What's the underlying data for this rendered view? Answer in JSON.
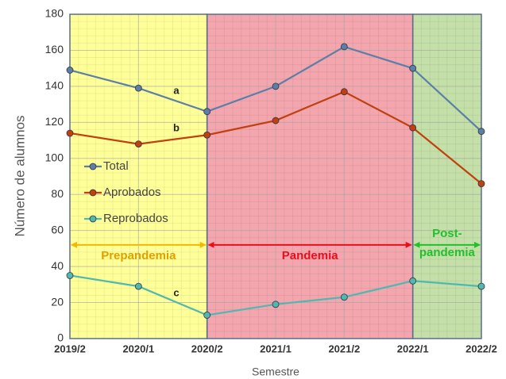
{
  "chart_data": {
    "type": "line",
    "xlabel": "Semestre",
    "ylabel": "Número de alumnos",
    "categories": [
      "2019/2",
      "2020/1",
      "2020/2",
      "2021/1",
      "2021/2",
      "2022/1",
      "2022/2"
    ],
    "series": [
      {
        "name": "Total",
        "color": "#5b7fa6",
        "values": [
          149,
          139,
          126,
          140,
          162,
          150,
          115
        ]
      },
      {
        "name": "Aprobados",
        "color": "#c0400f",
        "values": [
          114,
          108,
          113,
          121,
          137,
          117,
          86
        ]
      },
      {
        "name": "Reprobados",
        "color": "#4fb8b0",
        "values": [
          35,
          29,
          13,
          19,
          23,
          32,
          29
        ]
      }
    ],
    "regions": [
      {
        "label": "Prepandemia",
        "start": "2019/2",
        "end": "2020/2",
        "fill": "#ffff99",
        "arrow": "#f5b800",
        "text": "#e0a000"
      },
      {
        "label": "Pandemia",
        "start": "2020/2",
        "end": "2022/1",
        "fill": "#f4a6ae",
        "arrow": "#e8101c",
        "text": "#e8101c"
      },
      {
        "label": "Post-\npandemia",
        "start": "2022/1",
        "end": "2022/2",
        "fill": "#c4e0a8",
        "arrow": "#22c02c",
        "text": "#22c02c"
      }
    ],
    "annotations": [
      "a",
      "b",
      "c"
    ],
    "ylim": [
      0,
      180
    ],
    "yticks": [
      0,
      20,
      40,
      60,
      80,
      100,
      120,
      140,
      160,
      180
    ],
    "grid": true,
    "legend": "upper left"
  }
}
